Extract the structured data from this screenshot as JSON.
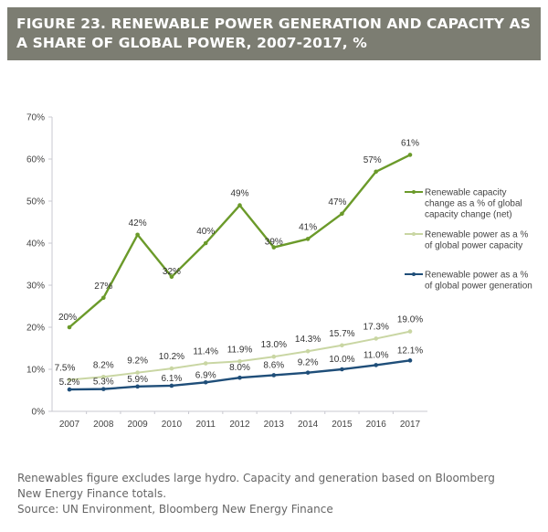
{
  "header": {
    "title_line1": "FIGURE 23. RENEWABLE POWER GENERATION AND CAPACITY AS",
    "title_line2": "A SHARE OF GLOBAL POWER, 2007-2017, %",
    "background_color": "#7c7d72"
  },
  "chart_data": {
    "type": "line",
    "title": "Renewable power generation and capacity as a share of global power, 2007-2017, %",
    "xlabel": "",
    "ylabel": "",
    "categories": [
      "2007",
      "2008",
      "2009",
      "2010",
      "2011",
      "2012",
      "2013",
      "2014",
      "2015",
      "2016",
      "2017"
    ],
    "ylim": [
      0,
      70
    ],
    "yticks": [
      0,
      10,
      20,
      30,
      40,
      50,
      60,
      70
    ],
    "ytick_labels": [
      "0%",
      "10%",
      "20%",
      "30%",
      "40%",
      "50%",
      "60%",
      "70%"
    ],
    "grid": false,
    "legend_position": "right",
    "series": [
      {
        "name": "Renewable capacity change as a % of global capacity change (net)",
        "legend_lines": [
          "Renewable capacity",
          "change as a % of global",
          "capacity change (net)"
        ],
        "color": "#6b9a2a",
        "values": [
          20,
          27,
          42,
          32,
          40,
          49,
          39,
          41,
          47,
          57,
          61
        ],
        "labels": [
          "20%",
          "27%",
          "42%",
          "32%",
          "40%",
          "49%",
          "39%",
          "41%",
          "47%",
          "57%",
          "61%"
        ]
      },
      {
        "name": "Renewable power as a % of global power capacity",
        "legend_lines": [
          "Renewable power as a %",
          "of global power capacity"
        ],
        "color": "#c9d6a3",
        "values": [
          7.5,
          8.2,
          9.2,
          10.2,
          11.4,
          11.9,
          13.0,
          14.3,
          15.7,
          17.3,
          19.0
        ],
        "labels": [
          "7.5%",
          "8.2%",
          "9.2%",
          "10.2%",
          "11.4%",
          "11.9%",
          "13.0%",
          "14.3%",
          "15.7%",
          "17.3%",
          "19.0%"
        ]
      },
      {
        "name": "Renewable power as a % of global power generation",
        "legend_lines": [
          "Renewable power as a %",
          "of global power generation"
        ],
        "color": "#1f4e79",
        "values": [
          5.2,
          5.3,
          5.9,
          6.1,
          6.9,
          8.0,
          8.6,
          9.2,
          10.0,
          11.0,
          12.1
        ],
        "labels": [
          "5.2%",
          "5.3%",
          "5.9%",
          "6.1%",
          "6.9%",
          "8.0%",
          "8.6%",
          "9.2%",
          "10.0%",
          "11.0%",
          "12.1%"
        ]
      }
    ]
  },
  "footnote": {
    "line1": "Renewables figure excludes large hydro. Capacity and generation based on Bloomberg",
    "line2": "New Energy Finance totals.",
    "source": "Source: UN Environment, Bloomberg New Energy Finance"
  }
}
